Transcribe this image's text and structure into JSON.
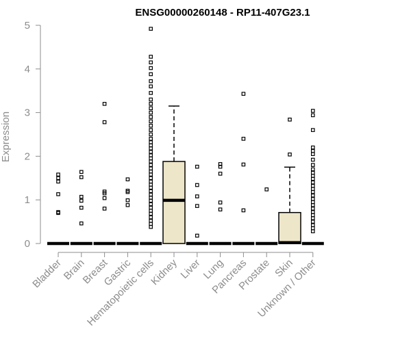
{
  "chart_data": {
    "type": "boxplot",
    "title": "ENSG00000260148 - RP11-407G23.1",
    "ylabel": "Expression",
    "xlabel": "",
    "ylim": [
      0,
      5
    ],
    "yticks": [
      0,
      1,
      2,
      3,
      4,
      5
    ],
    "box_fill": "#ede6c9",
    "categories": [
      "Bladder",
      "Brain",
      "Breast",
      "Gastric",
      "Hematopoietic cells",
      "Kidney",
      "Liver",
      "Lung",
      "Pancreas",
      "Prostate",
      "Skin",
      "Unknown / Other"
    ],
    "boxes": [
      {
        "q1": 0,
        "median": 0,
        "q3": 0,
        "whisker_low": 0,
        "whisker_high": 0,
        "outliers": [
          0.7,
          0.72,
          1.13,
          1.42,
          1.5,
          1.58
        ]
      },
      {
        "q1": 0,
        "median": 0,
        "q3": 0,
        "whisker_low": 0,
        "whisker_high": 0,
        "outliers": [
          0.46,
          0.82,
          0.98,
          1.07,
          1.52,
          1.64
        ]
      },
      {
        "q1": 0,
        "median": 0,
        "q3": 0,
        "whisker_low": 0,
        "whisker_high": 0,
        "outliers": [
          0.8,
          1.04,
          1.15,
          1.19,
          2.78,
          3.2
        ]
      },
      {
        "q1": 0,
        "median": 0,
        "q3": 0,
        "whisker_low": 0,
        "whisker_high": 0,
        "outliers": [
          0.88,
          0.99,
          1.18,
          1.21,
          1.47
        ]
      },
      {
        "q1": 0,
        "median": 0,
        "q3": 0,
        "whisker_low": 0,
        "whisker_high": 0,
        "outliers": [
          0.38,
          0.45,
          0.52,
          0.6,
          0.68,
          0.75,
          0.82,
          0.9,
          0.98,
          1.05,
          1.12,
          1.2,
          1.28,
          1.35,
          1.42,
          1.5,
          1.58,
          1.65,
          1.72,
          1.8,
          1.88,
          1.95,
          2.02,
          2.1,
          2.18,
          2.25,
          2.32,
          2.4,
          2.5,
          2.6,
          2.7,
          2.8,
          2.9,
          3.0,
          3.1,
          3.2,
          3.3,
          3.45,
          3.6,
          3.72,
          3.88,
          4.02,
          4.15,
          4.28,
          4.92
        ]
      },
      {
        "q1": 0,
        "median": 0.99,
        "q3": 1.88,
        "whisker_low": 0,
        "whisker_high": 3.15,
        "outliers": []
      },
      {
        "q1": 0,
        "median": 0,
        "q3": 0,
        "whisker_low": 0,
        "whisker_high": 0,
        "outliers": [
          0.18,
          0.86,
          1.08,
          1.34,
          1.76
        ]
      },
      {
        "q1": 0,
        "median": 0,
        "q3": 0,
        "whisker_low": 0,
        "whisker_high": 0,
        "outliers": [
          0.78,
          0.94,
          1.6,
          1.76,
          1.82
        ]
      },
      {
        "q1": 0,
        "median": 0,
        "q3": 0,
        "whisker_low": 0,
        "whisker_high": 0,
        "outliers": [
          0.76,
          1.81,
          2.4,
          3.43
        ]
      },
      {
        "q1": 0,
        "median": 0,
        "q3": 0,
        "whisker_low": 0,
        "whisker_high": 0,
        "outliers": [
          1.24
        ]
      },
      {
        "q1": 0,
        "median": 0.02,
        "q3": 0.71,
        "whisker_low": 0,
        "whisker_high": 1.75,
        "outliers": [
          2.04,
          2.84
        ]
      },
      {
        "q1": 0,
        "median": 0,
        "q3": 0,
        "whisker_low": 0,
        "whisker_high": 0,
        "outliers": [
          0.28,
          0.35,
          0.42,
          0.5,
          0.58,
          0.65,
          0.72,
          0.8,
          0.88,
          0.95,
          1.02,
          1.1,
          1.18,
          1.25,
          1.32,
          1.4,
          1.48,
          1.55,
          1.62,
          1.7,
          1.8,
          1.92,
          2.05,
          2.12,
          2.2,
          2.6,
          2.94,
          3.04
        ]
      }
    ]
  }
}
